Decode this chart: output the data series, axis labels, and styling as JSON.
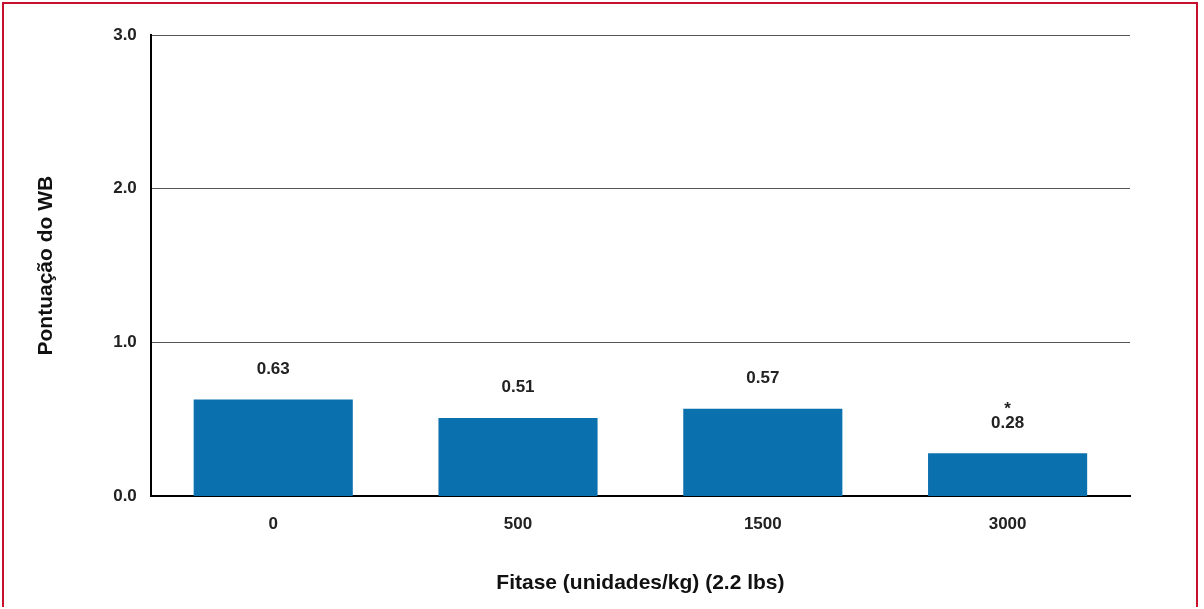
{
  "chart_data": {
    "type": "bar",
    "xlabel": "Fitase (unidades/kg) (2.2 lbs)",
    "ylabel": "Pontuação do WB",
    "categories": [
      "0",
      "500",
      "1500",
      "3000"
    ],
    "values": [
      0.63,
      0.51,
      0.57,
      0.28
    ],
    "color": "#0b70ae",
    "ylim": [
      0,
      3
    ],
    "yticks": [
      {
        "value": 0,
        "label": "0.0"
      },
      {
        "value": 1,
        "label": "1.0"
      },
      {
        "value": 2,
        "label": "2.0"
      },
      {
        "value": 3,
        "label": "3.0"
      }
    ],
    "grid": "y",
    "data_labels": true,
    "annotations": [
      {
        "text": "*",
        "x": "3000",
        "y": 0.28
      }
    ]
  }
}
